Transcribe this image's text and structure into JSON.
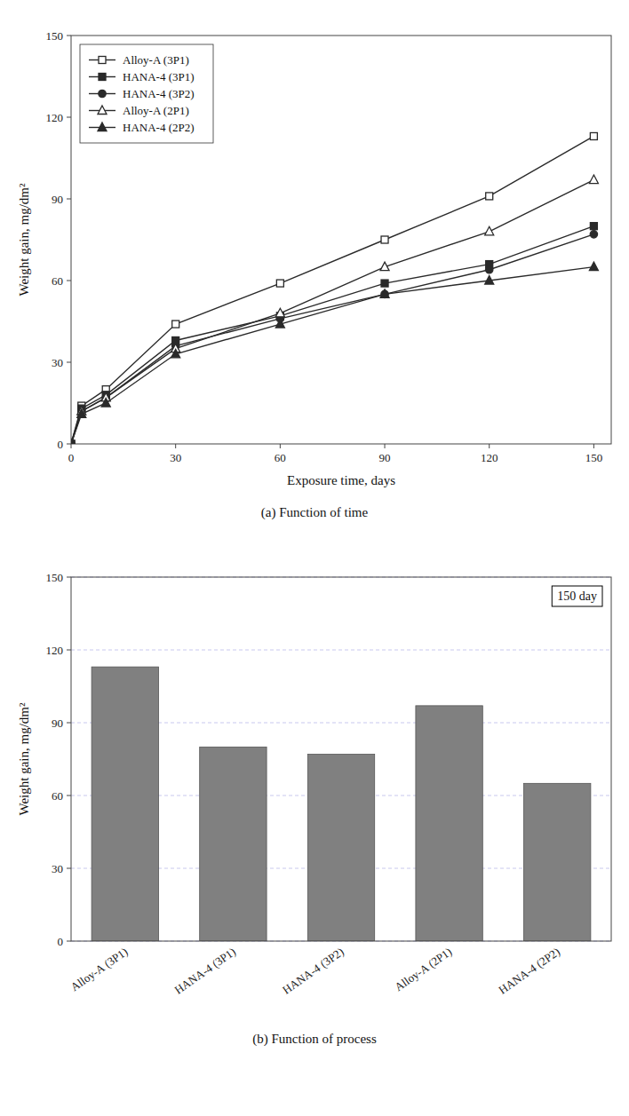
{
  "chart_data": [
    {
      "type": "line",
      "x": [
        0,
        3,
        10,
        30,
        60,
        90,
        120,
        150
      ],
      "series": [
        {
          "name": "Alloy-A (3P1)",
          "color": "#2a2a2a",
          "marker": "square-open",
          "values": [
            0,
            14,
            20,
            44,
            59,
            75,
            91,
            113
          ]
        },
        {
          "name": "HANA-4 (3P1)",
          "color": "#2a2a2a",
          "marker": "square",
          "values": [
            0,
            13,
            18,
            38,
            47,
            59,
            66,
            80
          ]
        },
        {
          "name": "HANA-4 (3P2)",
          "color": "#2a2a2a",
          "marker": "circle",
          "values": [
            0,
            12,
            17,
            36,
            46,
            55,
            64,
            77
          ]
        },
        {
          "name": "Alloy-A (2P1)",
          "color": "#2a2a2a",
          "marker": "triangle-open",
          "values": [
            0,
            12,
            17,
            35,
            48,
            65,
            78,
            97
          ]
        },
        {
          "name": "HANA-4 (2P2)",
          "color": "#2a2a2a",
          "marker": "triangle",
          "values": [
            0,
            11,
            15,
            33,
            44,
            55,
            60,
            65
          ]
        }
      ],
      "x_label": "Exposure time, days",
      "y_label": "Weight gain, mg/dm²",
      "xlim": [
        0,
        155
      ],
      "xticks": [
        0,
        30,
        60,
        90,
        120,
        150
      ],
      "ylim": [
        0,
        150
      ],
      "yticks": [
        0,
        30,
        60,
        90,
        120,
        150
      ],
      "legend": "upper left",
      "grid": false,
      "caption": "(a)  Function of time"
    },
    {
      "type": "bar",
      "categories": [
        "Alloy-A (3P1)",
        "HANA-4 (3P1)",
        "HANA-4 (3P2)",
        "Alloy-A (2P1)",
        "HANA-4 (2P2)"
      ],
      "values": [
        113,
        80,
        77,
        97,
        65
      ],
      "color": "#808080",
      "y_label": "Weight gain, mg/dm²",
      "ylim": [
        0,
        150
      ],
      "yticks": [
        0,
        30,
        60,
        90,
        120,
        150
      ],
      "grid": true,
      "annotations": [
        "150 day"
      ],
      "caption": "(b)  Function of process"
    }
  ]
}
